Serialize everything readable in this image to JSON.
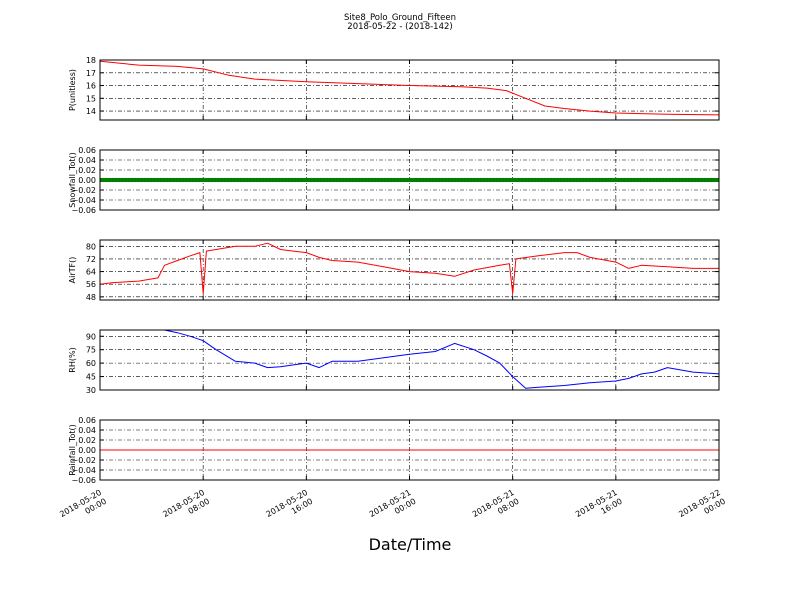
{
  "chart_data": {
    "type": "line",
    "title": "Site8_Polo_Ground_Fifteen",
    "subtitle": "2018-05-22 - (2018-142)",
    "xlabel": "Date/Time",
    "xlim": [
      "2018-05-20 00:00",
      "2018-05-22 00:00"
    ],
    "x_ticks": [
      "2018-05-20 00:00",
      "2018-05-20 08:00",
      "2018-05-20 16:00",
      "2018-05-21 00:00",
      "2018-05-21 08:00",
      "2018-05-21 16:00",
      "2018-05-22 00:00"
    ],
    "x_tick_labels": [
      [
        "2018-05-20",
        "00:00"
      ],
      [
        "2018-05-20",
        "08:00"
      ],
      [
        "2018-05-20",
        "16:00"
      ],
      [
        "2018-05-21",
        "00:00"
      ],
      [
        "2018-05-21",
        "08:00"
      ],
      [
        "2018-05-21",
        "16:00"
      ],
      [
        "2018-05-22",
        "00:00"
      ]
    ],
    "grid": true,
    "panels": [
      {
        "ylabel": "P(unitless)",
        "ylim": [
          13.3,
          18
        ],
        "yticks": [
          14,
          15,
          16,
          17,
          18
        ],
        "ytick_labels": [
          "14",
          "15",
          "16",
          "17",
          "18"
        ],
        "series": [
          {
            "color": "#ff0000",
            "x": [
              "2018-05-20 00:00",
              "2018-05-20 03:00",
              "2018-05-20 06:00",
              "2018-05-20 08:00",
              "2018-05-20 10:00",
              "2018-05-20 12:00",
              "2018-05-20 16:00",
              "2018-05-21 00:00",
              "2018-05-21 04:00",
              "2018-05-21 06:00",
              "2018-05-21 07:30",
              "2018-05-21 09:00",
              "2018-05-21 10:30",
              "2018-05-21 12:00",
              "2018-05-21 14:00",
              "2018-05-21 16:00",
              "2018-05-21 20:00",
              "2018-05-22 00:00"
            ],
            "y": [
              17.9,
              17.6,
              17.5,
              17.3,
              16.8,
              16.5,
              16.3,
              16.0,
              15.9,
              15.8,
              15.6,
              15.0,
              14.4,
              14.2,
              14.0,
              13.85,
              13.75,
              13.7
            ]
          }
        ]
      },
      {
        "ylabel": "Snowfall_Tot()",
        "ylim": [
          -0.06,
          0.06
        ],
        "yticks": [
          -0.06,
          -0.04,
          -0.02,
          0.0,
          0.02,
          0.04,
          0.06
        ],
        "ytick_labels": [
          "−0.06",
          "−0.04",
          "−0.02",
          "0.00",
          "0.02",
          "0.04",
          "0.06"
        ],
        "series": [
          {
            "color": "#008000",
            "marker": "dot",
            "x": [
              "2018-05-20 00:00",
              "2018-05-22 00:00"
            ],
            "y": [
              0.0,
              0.0
            ]
          }
        ]
      },
      {
        "ylabel": "AirTF()",
        "ylim": [
          46,
          84
        ],
        "yticks": [
          48,
          56,
          64,
          72,
          80
        ],
        "ytick_labels": [
          "48",
          "56",
          "64",
          "72",
          "80"
        ],
        "series": [
          {
            "color": "#ff0000",
            "x": [
              "2018-05-20 00:00",
              "2018-05-20 01:00",
              "2018-05-20 03:00",
              "2018-05-20 04:30",
              "2018-05-20 05:00",
              "2018-05-20 06:00",
              "2018-05-20 07:00",
              "2018-05-20 07:45",
              "2018-05-20 08:00",
              "2018-05-20 08:15",
              "2018-05-20 09:00",
              "2018-05-20 10:30",
              "2018-05-20 12:00",
              "2018-05-20 13:00",
              "2018-05-20 14:00",
              "2018-05-20 15:00",
              "2018-05-20 16:00",
              "2018-05-20 17:00",
              "2018-05-20 18:00",
              "2018-05-20 20:00",
              "2018-05-20 22:00",
              "2018-05-21 00:00",
              "2018-05-21 02:00",
              "2018-05-21 03:30",
              "2018-05-21 05:00",
              "2018-05-21 07:00",
              "2018-05-21 07:45",
              "2018-05-21 08:00",
              "2018-05-21 08:15",
              "2018-05-21 10:00",
              "2018-05-21 12:00",
              "2018-05-21 13:00",
              "2018-05-21 14:00",
              "2018-05-21 16:00",
              "2018-05-21 17:00",
              "2018-05-21 18:00",
              "2018-05-21 20:00",
              "2018-05-21 22:00",
              "2018-05-22 00:00"
            ],
            "y": [
              56,
              57,
              58,
              60,
              68,
              71,
              74,
              76,
              50,
              77,
              78,
              80,
              80,
              82,
              78,
              77,
              76,
              73,
              71,
              70,
              67,
              64,
              63,
              61,
              65,
              68,
              69,
              50,
              72,
              74,
              76,
              76,
              73,
              70,
              66,
              68,
              67,
              66,
              66
            ]
          }
        ]
      },
      {
        "ylabel": "RH(%)",
        "ylim": [
          30,
          97
        ],
        "yticks": [
          30,
          45,
          60,
          75,
          90
        ],
        "ytick_labels": [
          "30",
          "45",
          "60",
          "75",
          "90"
        ],
        "series": [
          {
            "color": "#0000ff",
            "x": [
              "2018-05-20 05:00",
              "2018-05-20 06:00",
              "2018-05-20 07:00",
              "2018-05-20 08:00",
              "2018-05-20 09:00",
              "2018-05-20 10:30",
              "2018-05-20 12:00",
              "2018-05-20 13:00",
              "2018-05-20 14:00",
              "2018-05-20 15:00",
              "2018-05-20 16:00",
              "2018-05-20 17:00",
              "2018-05-20 18:00",
              "2018-05-20 20:00",
              "2018-05-20 22:00",
              "2018-05-21 00:00",
              "2018-05-21 02:00",
              "2018-05-21 03:30",
              "2018-05-21 05:00",
              "2018-05-21 06:00",
              "2018-05-21 07:00",
              "2018-05-21 08:00",
              "2018-05-21 09:00",
              "2018-05-21 10:00",
              "2018-05-21 12:00",
              "2018-05-21 14:00",
              "2018-05-21 16:00",
              "2018-05-21 17:00",
              "2018-05-21 18:00",
              "2018-05-21 19:00",
              "2018-05-21 20:00",
              "2018-05-21 22:00",
              "2018-05-22 00:00"
            ],
            "y": [
              97,
              94,
              90,
              85,
              75,
              62,
              60,
              55,
              56,
              58,
              60,
              55,
              62,
              62,
              66,
              70,
              73,
              82,
              75,
              68,
              60,
              45,
              32,
              33,
              35,
              38,
              40,
              43,
              48,
              50,
              55,
              50,
              48
            ]
          }
        ]
      },
      {
        "ylabel": "Rainfall_Tot()",
        "ylim": [
          -0.06,
          0.06
        ],
        "yticks": [
          -0.06,
          -0.04,
          -0.02,
          0.0,
          0.02,
          0.04,
          0.06
        ],
        "ytick_labels": [
          "−0.06",
          "−0.04",
          "−0.02",
          "0.00",
          "0.02",
          "0.04",
          "0.06"
        ],
        "series": [
          {
            "color": "#ff0000",
            "x": [
              "2018-05-20 00:00",
              "2018-05-22 00:00"
            ],
            "y": [
              0.0,
              0.0
            ]
          }
        ]
      }
    ]
  }
}
